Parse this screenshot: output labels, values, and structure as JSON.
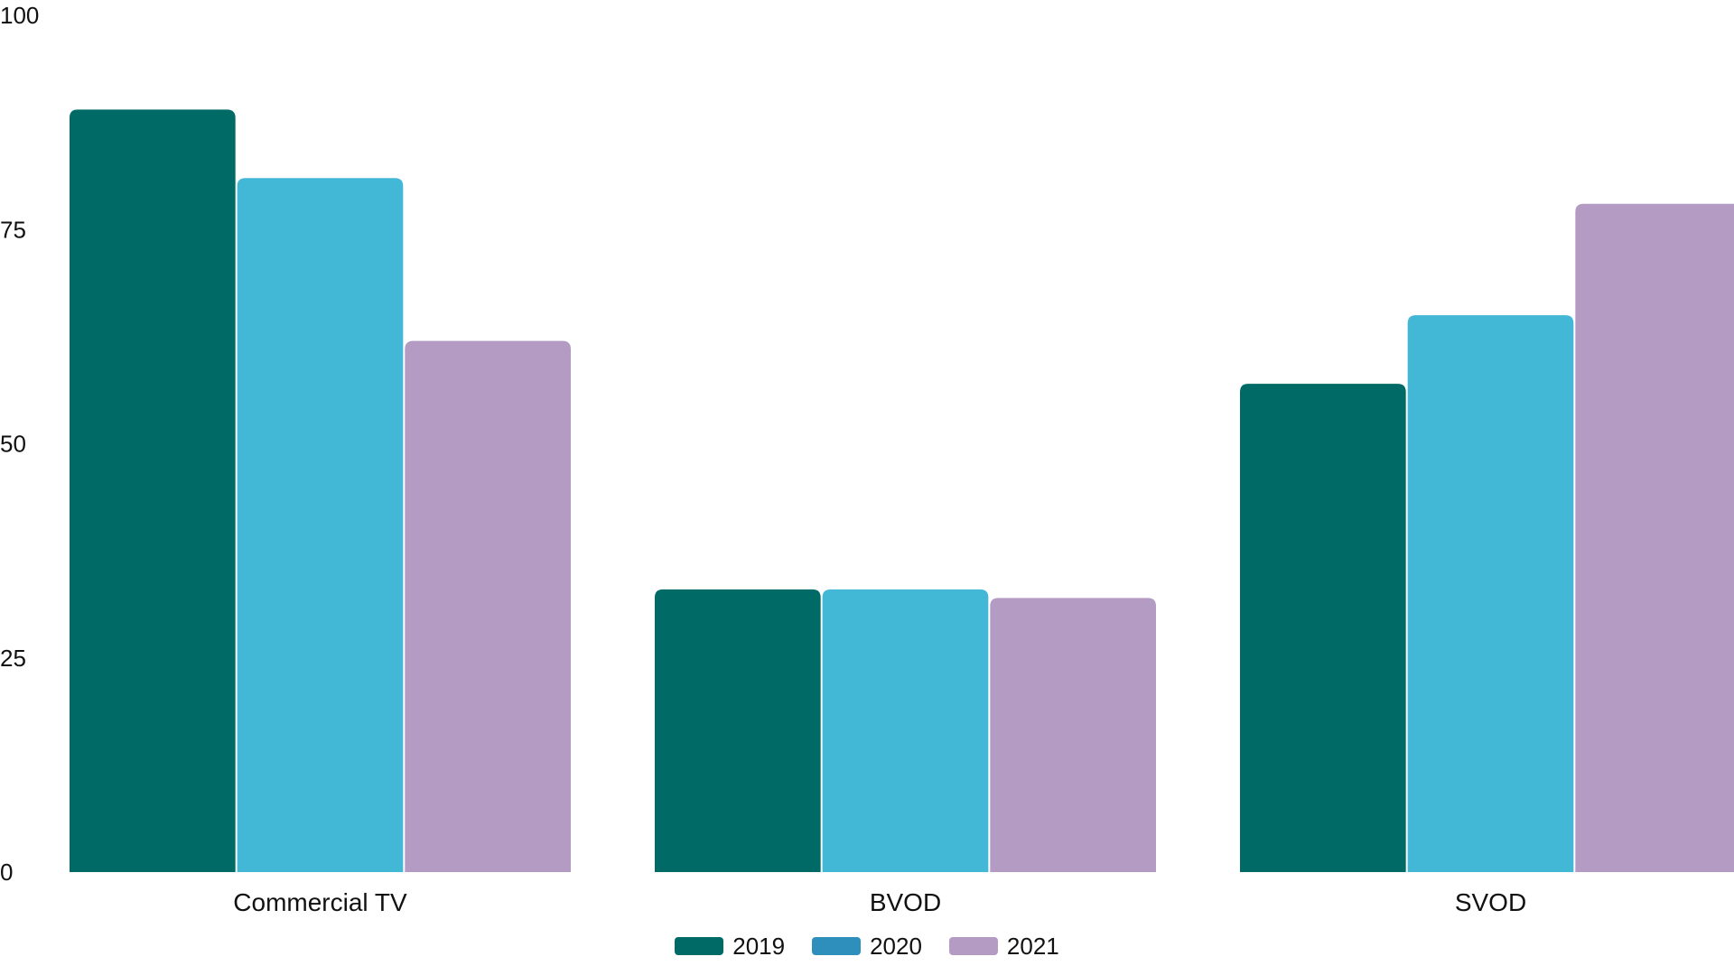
{
  "chart_data": {
    "type": "bar",
    "title": "",
    "xlabel": "",
    "ylabel": "",
    "categories": [
      "Commercial TV",
      "BVOD",
      "SVOD"
    ],
    "series": [
      {
        "name": "2019",
        "values": [
          89,
          33,
          57
        ],
        "color": "#006a66",
        "legend_color": "#006a66"
      },
      {
        "name": "2020",
        "values": [
          81,
          33,
          65
        ],
        "color": "#43b8d6",
        "legend_color": "#2e8fbd"
      },
      {
        "name": "2021",
        "values": [
          62,
          32,
          78
        ],
        "color": "#b39bc4",
        "legend_color": "#b39bc4"
      }
    ],
    "ylim": [
      0,
      100
    ],
    "yticks": [
      0,
      25,
      50,
      75,
      100
    ],
    "ytick_labels": [
      "0",
      "25",
      "50",
      "75",
      "100"
    ],
    "grid": false,
    "legend_position": "bottom-center"
  }
}
